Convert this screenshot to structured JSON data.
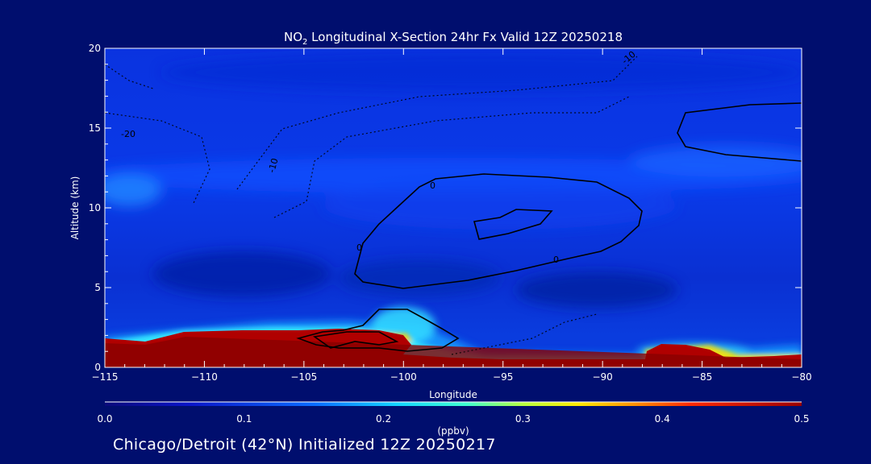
{
  "chart_data": {
    "type": "heatmap",
    "title": {
      "prefix": "NO",
      "subscript": "2",
      "suffix": " Longitudinal X-Section 24hr  Fx Valid 12Z 20250218"
    },
    "xlabel": "Longitude",
    "ylabel": "Altitude (km)",
    "xlim": [
      -115,
      -80
    ],
    "ylim": [
      0,
      20
    ],
    "xticks": [
      -115,
      -110,
      -105,
      -100,
      -95,
      -90,
      -85,
      -80
    ],
    "xtick_labels": [
      "-115",
      "-110",
      "-105",
      "-100",
      "-95",
      "-90",
      "-85",
      "-80"
    ],
    "yticks": [
      0,
      5,
      10,
      15,
      20
    ],
    "ytick_labels": [
      "0",
      "5",
      "10",
      "15",
      "20"
    ],
    "colorbar": {
      "label": "(ppbv)",
      "min": 0.0,
      "max": 0.5,
      "ticks": [
        "0.0",
        "0.1",
        "0.2",
        "0.3",
        "0.4",
        "0.5"
      ]
    },
    "surface_layer_top_km": [
      [
        -115,
        2.0
      ],
      [
        -113,
        1.8
      ],
      [
        -111,
        2.4
      ],
      [
        -108,
        2.4
      ],
      [
        -106,
        2.6
      ],
      [
        -104,
        2.8
      ],
      [
        -102,
        2.7
      ],
      [
        -100,
        2.2
      ],
      [
        -98,
        1.4
      ],
      [
        -96,
        1.0
      ],
      [
        -94,
        0.9
      ],
      [
        -90,
        0.9
      ],
      [
        -88,
        1.2
      ],
      [
        -87,
        1.6
      ],
      [
        -85,
        1.6
      ],
      [
        -84,
        1.2
      ],
      [
        -82,
        1.0
      ],
      [
        -80,
        1.3
      ]
    ],
    "high_concentration_regions": [
      {
        "lon_range": [
          -105,
          -99
        ],
        "alt_range": [
          1.0,
          2.6
        ],
        "level": 0.5
      },
      {
        "lon_range": [
          -88,
          -84
        ],
        "alt_range": [
          0.5,
          1.6
        ],
        "level": 0.5
      },
      {
        "lon_range": [
          -83,
          -80
        ],
        "alt_range": [
          0.4,
          0.9
        ],
        "level": 0.5
      }
    ],
    "contour_labels": [
      "-10",
      "-20",
      "-10",
      "0",
      "0",
      "0"
    ]
  },
  "footer": {
    "text": "Chicago/Detroit (42°N) Initialized 12Z 20250217"
  },
  "colors": {
    "background": "#000e6e",
    "field_base": "#0a2ee0",
    "low_blue": "#062ab8",
    "mid_cyan": "#1ad8ff",
    "high_red": "#b00000"
  }
}
